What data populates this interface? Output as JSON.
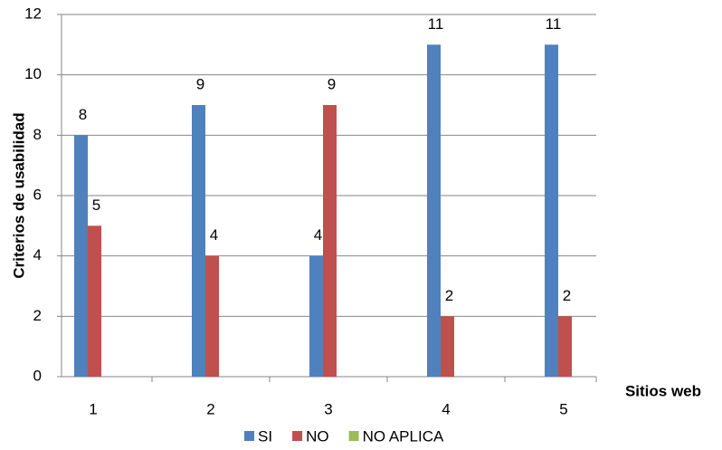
{
  "chart_data": {
    "type": "bar",
    "x_label": "Sitios web",
    "y_label": "Criterios de usabilidad",
    "categories": [
      "1",
      "2",
      "3",
      "4",
      "5"
    ],
    "series": [
      {
        "name": "SI",
        "color": "#4f81bd",
        "values": [
          8,
          9,
          4,
          11,
          11
        ]
      },
      {
        "name": "NO",
        "color": "#c0504d",
        "values": [
          5,
          4,
          9,
          2,
          2
        ]
      },
      {
        "name": "NO APLICA",
        "color": "#9bbb59",
        "values": [
          0,
          0,
          0,
          0,
          0
        ]
      }
    ],
    "ylim": [
      0,
      12
    ],
    "yticks": [
      0,
      2,
      4,
      6,
      8,
      10,
      12
    ],
    "grid": true,
    "legend": "bottom"
  }
}
